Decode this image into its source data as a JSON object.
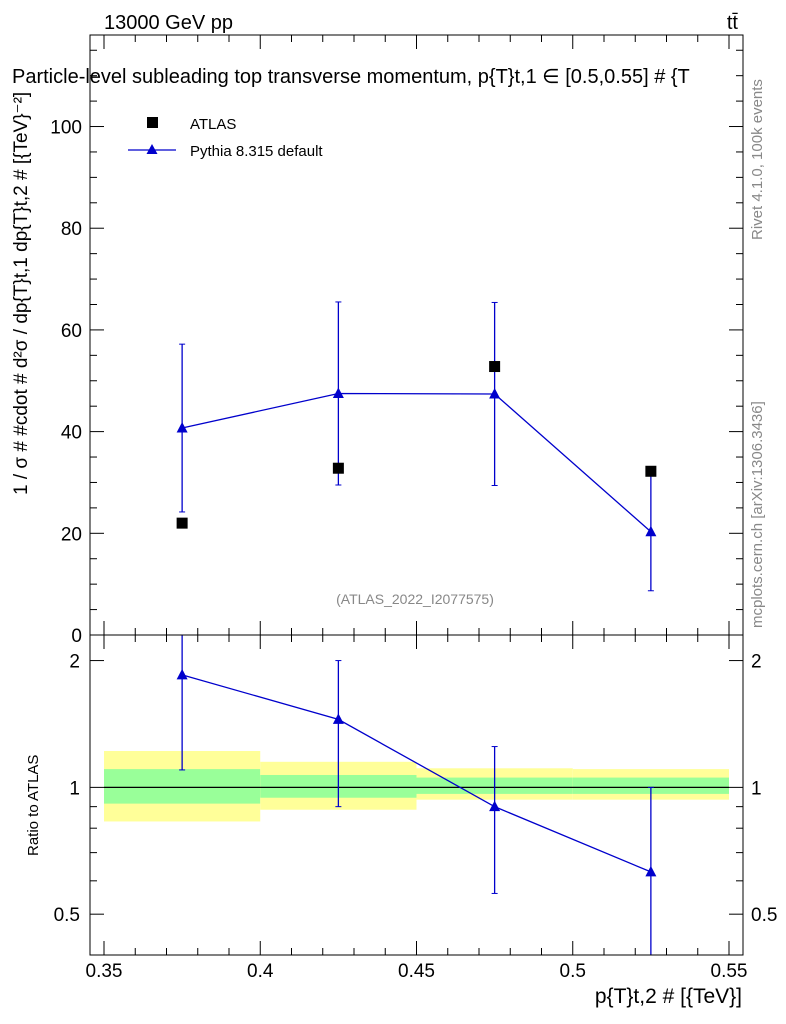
{
  "header": {
    "energy_label": "13000 GeV pp",
    "process_label": "tt̄",
    "title": "Particle-level subleading top transverse momentum, p{T}t,1 ∈ [0.5,0.55] # {T",
    "watermark": "(ATLAS_2022_I2077575)",
    "side_top": "Rivet 4.1.0,  100k events",
    "side_bottom": "mcplots.cern.ch [arXiv:1306.3436]"
  },
  "legend": {
    "data_label": "ATLAS",
    "mc_label": "Pythia 8.315 default"
  },
  "axes": {
    "ylabel_main": "1 / σ # #cdot # d²σ / dp{T}t,1 dp{T}t,2 # [{TeV}⁻²]",
    "ylabel_ratio": "Ratio to ATLAS",
    "xlabel": "p{T}t,2 # [{TeV}]"
  },
  "colors": {
    "data": "#000000",
    "mc": "#0000cc",
    "band_inner": "#99ff99",
    "band_outer": "#ffff99"
  },
  "chart_data": [
    {
      "type": "scatter",
      "panel": "main",
      "x_edges": [
        0.35,
        0.4,
        0.45,
        0.5,
        0.55
      ],
      "xlim": [
        0.35,
        0.55
      ],
      "ylim": [
        0,
        118
      ],
      "yticks": [
        0,
        20,
        40,
        60,
        80,
        100
      ],
      "ytick_labels": [
        "0",
        "20",
        "40",
        "60",
        "80",
        "100"
      ],
      "series": [
        {
          "name": "ATLAS",
          "x": [
            0.375,
            0.425,
            0.475,
            0.525
          ],
          "y": [
            22.0,
            32.8,
            52.8,
            32.2
          ],
          "yerr": [
            0,
            0,
            0,
            0
          ]
        },
        {
          "name": "Pythia 8.315 default",
          "x": [
            0.375,
            0.425,
            0.475,
            0.525
          ],
          "y": [
            40.7,
            47.5,
            47.4,
            20.3
          ],
          "yerr_low": [
            16.5,
            18.0,
            18.0,
            11.6
          ],
          "yerr_high": [
            16.5,
            18.0,
            18.0,
            11.6
          ]
        }
      ]
    },
    {
      "type": "line",
      "panel": "ratio",
      "log_y": true,
      "ylim": [
        0.4,
        2.3
      ],
      "yticks": [
        0.5,
        1,
        2
      ],
      "ytick_labels": [
        "0.5",
        "1",
        "2"
      ],
      "xticks": [
        0.35,
        0.4,
        0.45,
        0.5,
        0.55
      ],
      "xtick_labels": [
        "0.35",
        "0.4",
        "0.45",
        "0.5",
        "0.55"
      ],
      "bands": [
        {
          "x0": 0.35,
          "x1": 0.4,
          "inner": [
            0.915,
            1.105
          ],
          "outer": [
            0.83,
            1.22
          ]
        },
        {
          "x0": 0.4,
          "x1": 0.45,
          "inner": [
            0.945,
            1.07
          ],
          "outer": [
            0.885,
            1.15
          ]
        },
        {
          "x0": 0.45,
          "x1": 0.5,
          "inner": [
            0.965,
            1.055
          ],
          "outer": [
            0.935,
            1.11
          ]
        },
        {
          "x0": 0.5,
          "x1": 0.55,
          "inner": [
            0.965,
            1.055
          ],
          "outer": [
            0.935,
            1.105
          ]
        }
      ],
      "series": [
        {
          "name": "Pythia 8.315 default",
          "x": [
            0.375,
            0.425,
            0.475,
            0.525
          ],
          "y": [
            1.85,
            1.45,
            0.9,
            0.63
          ],
          "ylow": [
            1.1,
            0.9,
            0.56,
            0.36
          ],
          "yhigh": [
            2.35,
            2.0,
            1.25,
            1.0
          ]
        }
      ]
    }
  ]
}
